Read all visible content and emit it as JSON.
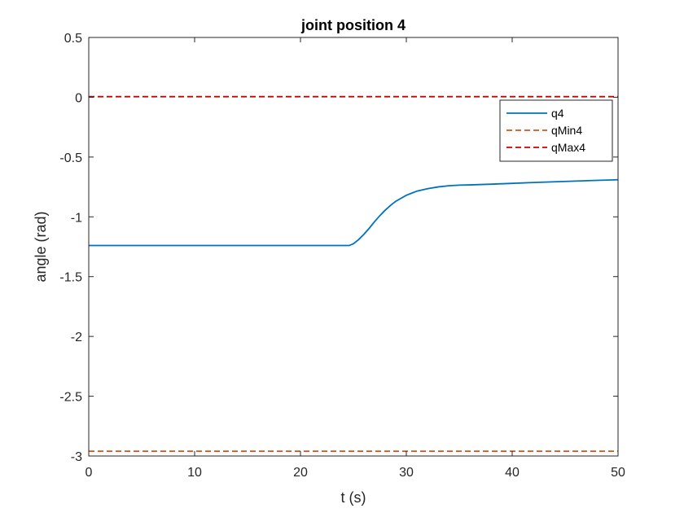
{
  "chart_data": {
    "type": "line",
    "title": "joint position 4",
    "xlabel": "t (s)",
    "ylabel": "angle (rad)",
    "xlim": [
      0,
      50
    ],
    "ylim": [
      -3,
      0.5
    ],
    "xticks": [
      0,
      10,
      20,
      30,
      40,
      50
    ],
    "xtick_labels": [
      "0",
      "10",
      "20",
      "30",
      "40",
      "50"
    ],
    "yticks": [
      -3,
      -2.5,
      -2,
      -1.5,
      -1,
      -0.5,
      0,
      0.5
    ],
    "ytick_labels": [
      "-3",
      "-2.5",
      "-2",
      "-1.5",
      "-1",
      "-0.5",
      "0",
      "0.5"
    ],
    "grid": false,
    "legend_position": "top-right",
    "series": [
      {
        "name": "q4",
        "style": "solid",
        "color": "#0072BD",
        "x": [
          0,
          24.6,
          25,
          25.5,
          26,
          26.5,
          27,
          27.5,
          28,
          28.5,
          29,
          29.5,
          30,
          31,
          32,
          33,
          34,
          35,
          36,
          38,
          40,
          42,
          44,
          46,
          48,
          50
        ],
        "y": [
          -1.24,
          -1.24,
          -1.225,
          -1.19,
          -1.145,
          -1.095,
          -1.04,
          -0.99,
          -0.945,
          -0.905,
          -0.87,
          -0.845,
          -0.82,
          -0.785,
          -0.765,
          -0.75,
          -0.74,
          -0.735,
          -0.733,
          -0.727,
          -0.72,
          -0.713,
          -0.707,
          -0.701,
          -0.695,
          -0.69
        ]
      },
      {
        "name": "qMin4",
        "style": "dashed",
        "color": "#D95319",
        "x": [
          0,
          50
        ],
        "y": [
          -2.96,
          -2.96
        ]
      },
      {
        "name": "qMax4",
        "style": "dashed",
        "color": "#CC0000",
        "x": [
          0,
          50
        ],
        "y": [
          0.005,
          0.005
        ]
      }
    ]
  }
}
